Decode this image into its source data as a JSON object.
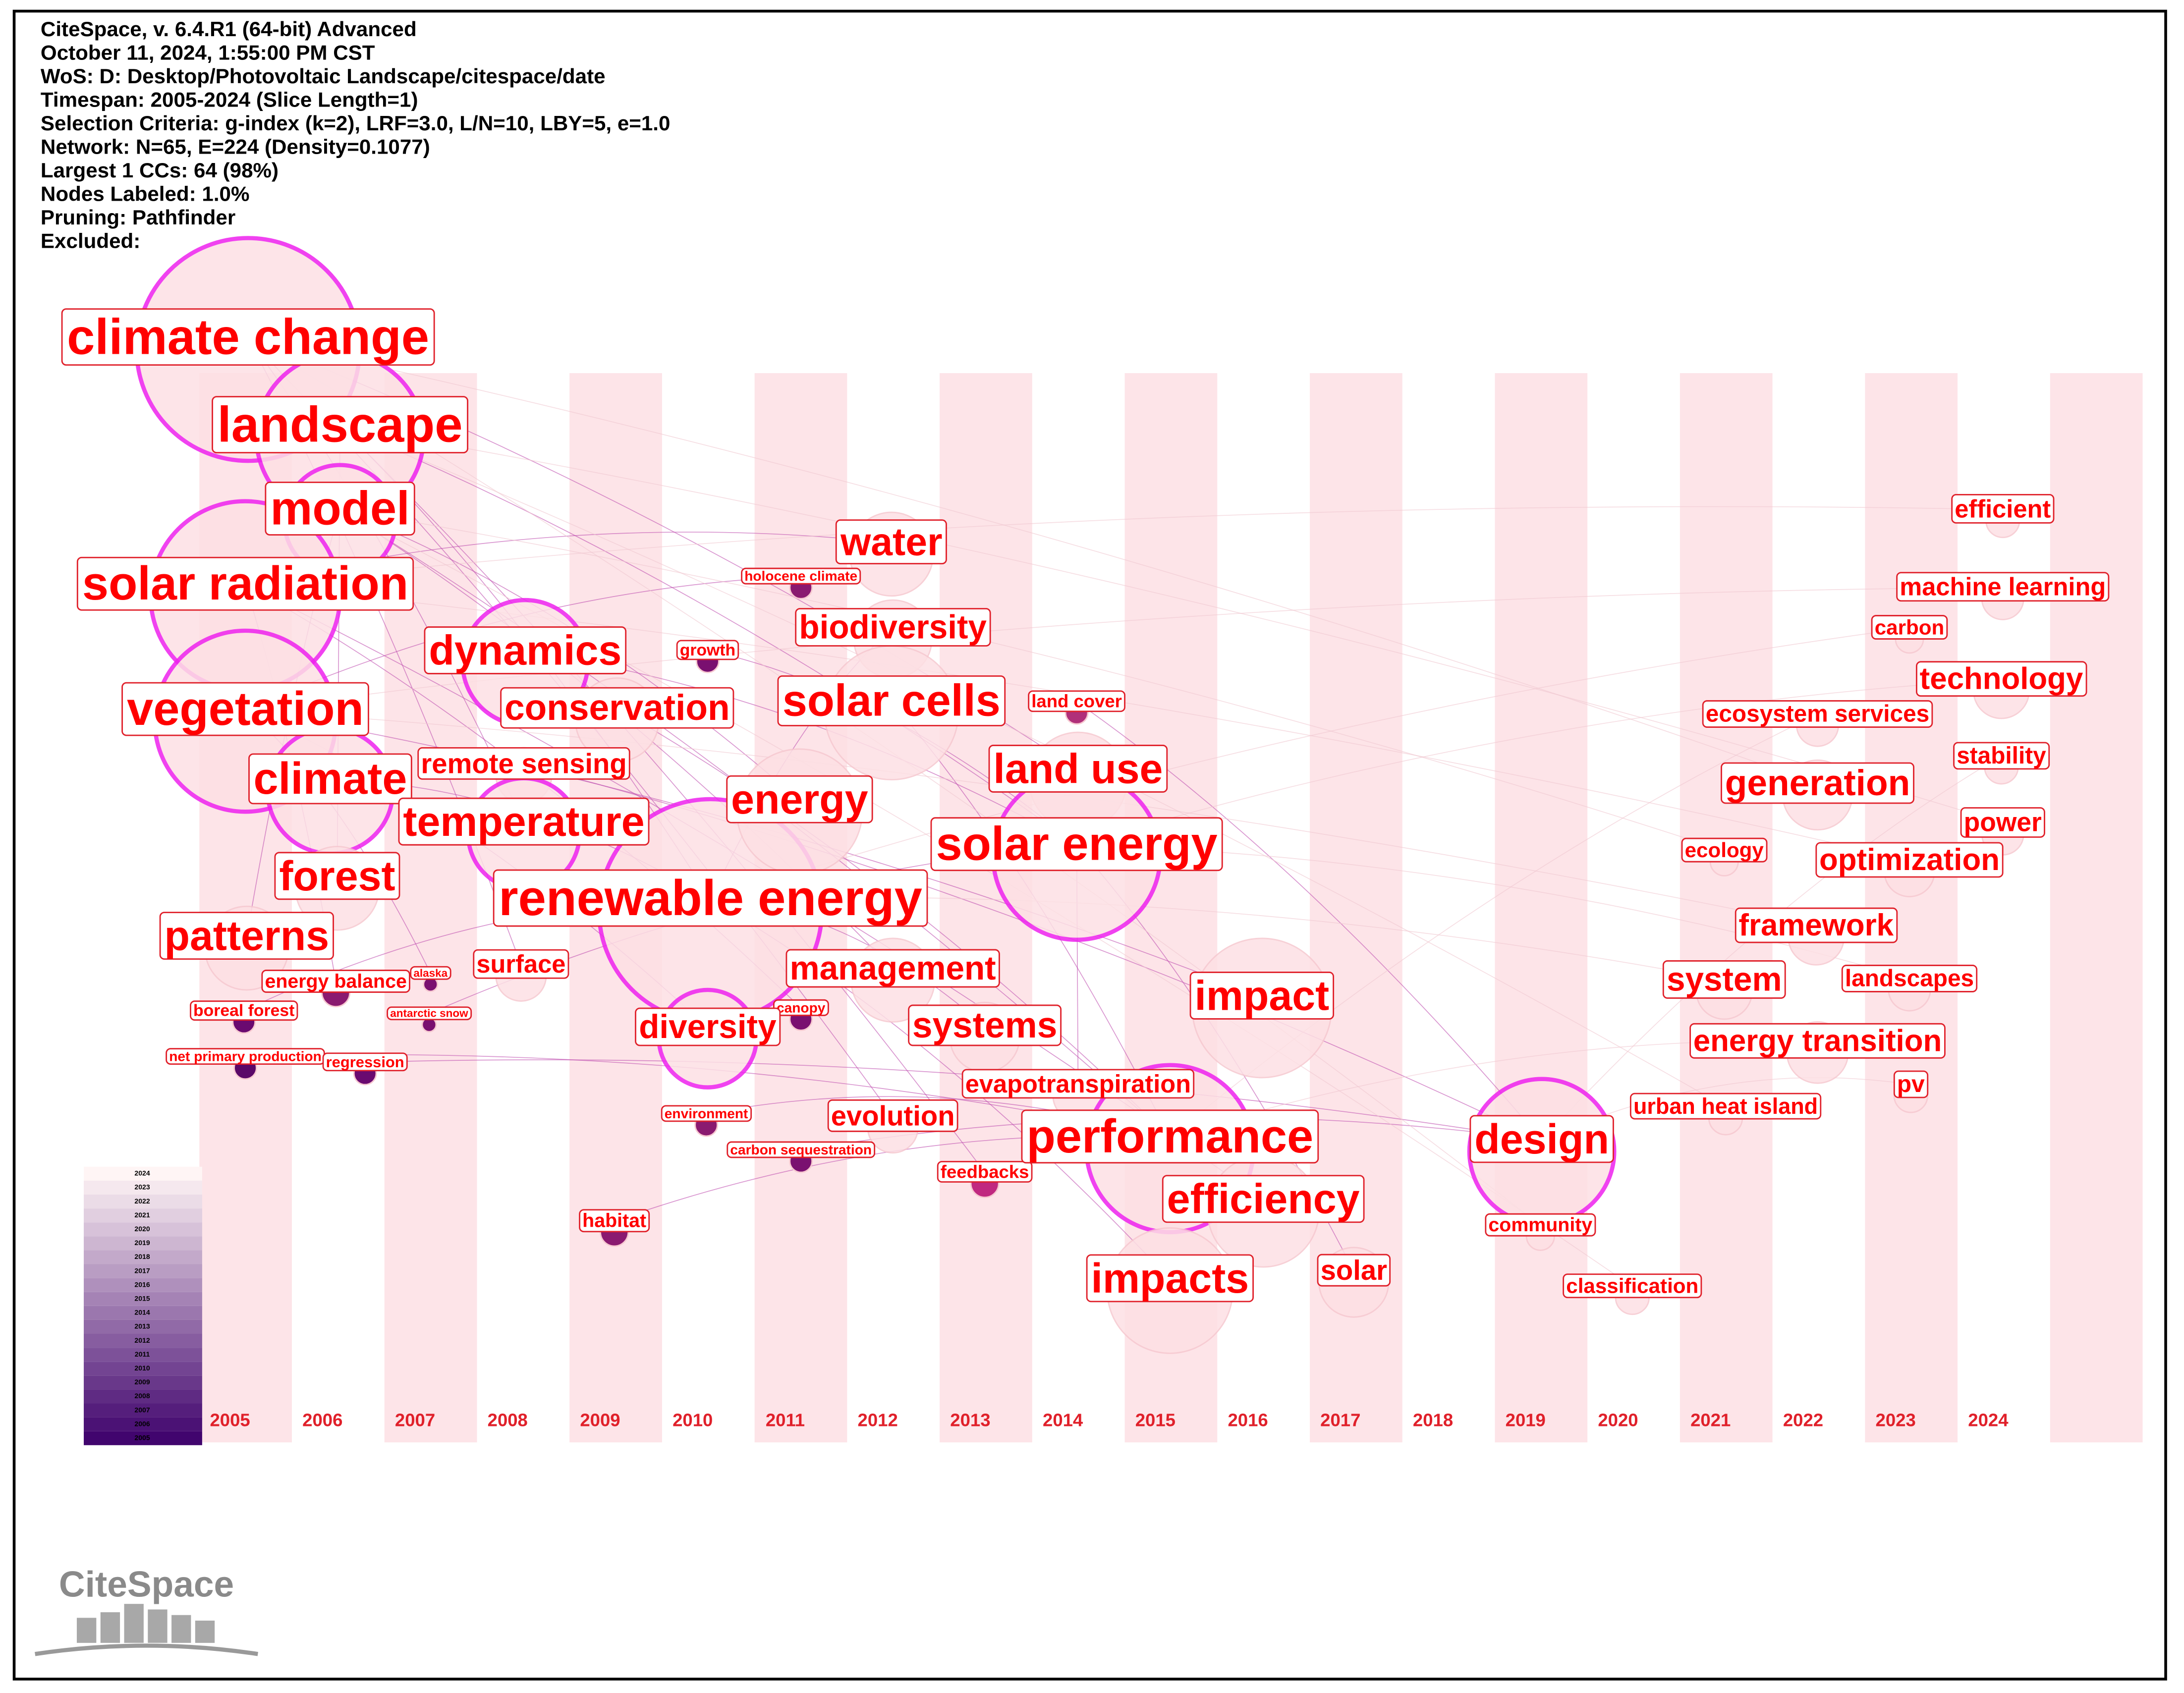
{
  "header": {
    "lines": [
      "CiteSpace, v. 6.4.R1 (64-bit) Advanced",
      "October 11, 2024, 1:55:00 PM CST",
      "WoS: D: Desktop/Photovoltaic Landscape/citespace/date",
      "Timespan: 2005-2024 (Slice Length=1)",
      "Selection Criteria: g-index (k=2), LRF=3.0, L/N=10, LBY=5, e=1.0",
      "Network: N=65, E=224 (Density=0.1077)",
      "Largest 1 CCs: 64 (98%)",
      "Nodes Labeled: 1.0%",
      "Pruning: Pathfinder",
      "Excluded:"
    ]
  },
  "timeline": {
    "years": [
      "2005",
      "2006",
      "2007",
      "2008",
      "2009",
      "2010",
      "2011",
      "2012",
      "2013",
      "2014",
      "2015",
      "2016",
      "2017",
      "2018",
      "2019",
      "2020",
      "2021",
      "2022",
      "2023",
      "2024"
    ]
  },
  "nodes": [
    {
      "label": "climate change"
    },
    {
      "label": "landscape"
    },
    {
      "label": "model"
    },
    {
      "label": "solar radiation"
    },
    {
      "label": "vegetation"
    },
    {
      "label": "climate"
    },
    {
      "label": "dynamics"
    },
    {
      "label": "conservation"
    },
    {
      "label": "remote sensing"
    },
    {
      "label": "temperature"
    },
    {
      "label": "forest"
    },
    {
      "label": "patterns"
    },
    {
      "label": "energy balance"
    },
    {
      "label": "alaska"
    },
    {
      "label": "boreal forest"
    },
    {
      "label": "antarctic snow"
    },
    {
      "label": "net primary production"
    },
    {
      "label": "regression"
    },
    {
      "label": "surface"
    },
    {
      "label": "renewable energy"
    },
    {
      "label": "energy"
    },
    {
      "label": "water"
    },
    {
      "label": "holocene climate"
    },
    {
      "label": "biodiversity"
    },
    {
      "label": "growth"
    },
    {
      "label": "solar cells"
    },
    {
      "label": "land cover"
    },
    {
      "label": "land use"
    },
    {
      "label": "solar energy"
    },
    {
      "label": "management"
    },
    {
      "label": "canopy"
    },
    {
      "label": "diversity"
    },
    {
      "label": "systems"
    },
    {
      "label": "evapotranspiration"
    },
    {
      "label": "environment"
    },
    {
      "label": "carbon sequestration"
    },
    {
      "label": "evolution"
    },
    {
      "label": "feedbacks"
    },
    {
      "label": "performance"
    },
    {
      "label": "efficiency"
    },
    {
      "label": "impact"
    },
    {
      "label": "impacts"
    },
    {
      "label": "solar"
    },
    {
      "label": "habitat"
    },
    {
      "label": "design"
    },
    {
      "label": "community"
    },
    {
      "label": "urban heat island"
    },
    {
      "label": "classification"
    },
    {
      "label": "efficient"
    },
    {
      "label": "machine learning"
    },
    {
      "label": "carbon"
    },
    {
      "label": "technology"
    },
    {
      "label": "ecosystem services"
    },
    {
      "label": "stability"
    },
    {
      "label": "generation"
    },
    {
      "label": "power"
    },
    {
      "label": "ecology"
    },
    {
      "label": "optimization"
    },
    {
      "label": "framework"
    },
    {
      "label": "system"
    },
    {
      "label": "landscapes"
    },
    {
      "label": "energy transition"
    },
    {
      "label": "pv"
    }
  ],
  "logo": "CiteSpace"
}
